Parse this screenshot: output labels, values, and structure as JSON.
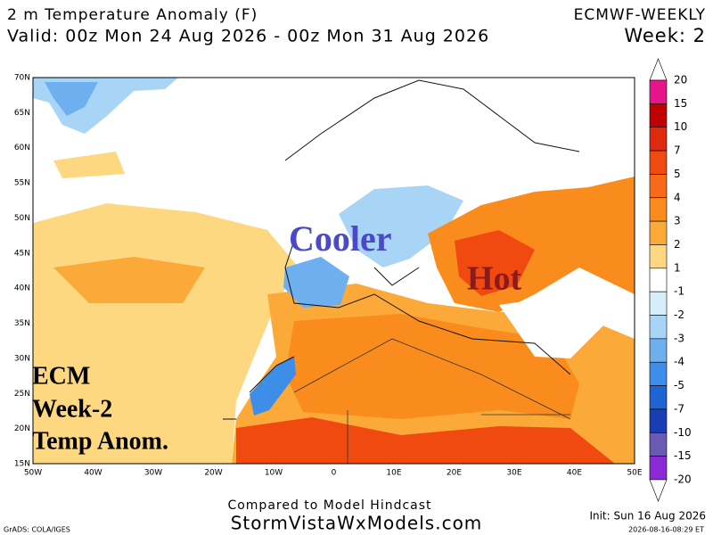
{
  "header": {
    "title": "2 m Temperature Anomaly (F)",
    "model": "ECMWF-WEEKLY",
    "valid": "Valid: 00z Mon 24 Aug 2026 - 00z Mon 31 Aug 2026",
    "week": "Week: 2"
  },
  "map": {
    "lat_labels": [
      "70N",
      "65N",
      "60N",
      "55N",
      "50N",
      "45N",
      "40N",
      "35N",
      "30N",
      "25N",
      "20N",
      "15N"
    ],
    "lon_labels": [
      "50W",
      "40W",
      "30W",
      "20W",
      "10W",
      "0",
      "10E",
      "20E",
      "30E",
      "40E",
      "50E"
    ],
    "annotations": {
      "cooler": "Cooler",
      "hot": "Hot",
      "ecm": "ECM",
      "week": "Week-2",
      "anom": "Temp Anom."
    }
  },
  "colorbar": {
    "labels": [
      20,
      15,
      10,
      7,
      5,
      4,
      3,
      2,
      1,
      -1,
      -2,
      -3,
      -4,
      -5,
      -7,
      -10,
      -15,
      -20
    ],
    "colors": [
      "#ffffff",
      "#e8158a",
      "#c00000",
      "#e02a10",
      "#f04a10",
      "#f86a1a",
      "#fa8c1e",
      "#fbaa3a",
      "#fdd880",
      "#ffffff",
      "#d7eefa",
      "#a8d4f5",
      "#6eb0ef",
      "#3c8ee8",
      "#1e64d2",
      "#1a3cb4",
      "#6a5ab4",
      "#8c2ad8",
      "#ffffff"
    ]
  },
  "footer": {
    "compared": "Compared to Model Hindcast",
    "site": "StormVistaWxModels.com",
    "init": "Init: Sun 16 Aug 2026",
    "grads": "GrADS: COLA/IGES",
    "stamp": "2026-08-16-08:29 ET"
  }
}
